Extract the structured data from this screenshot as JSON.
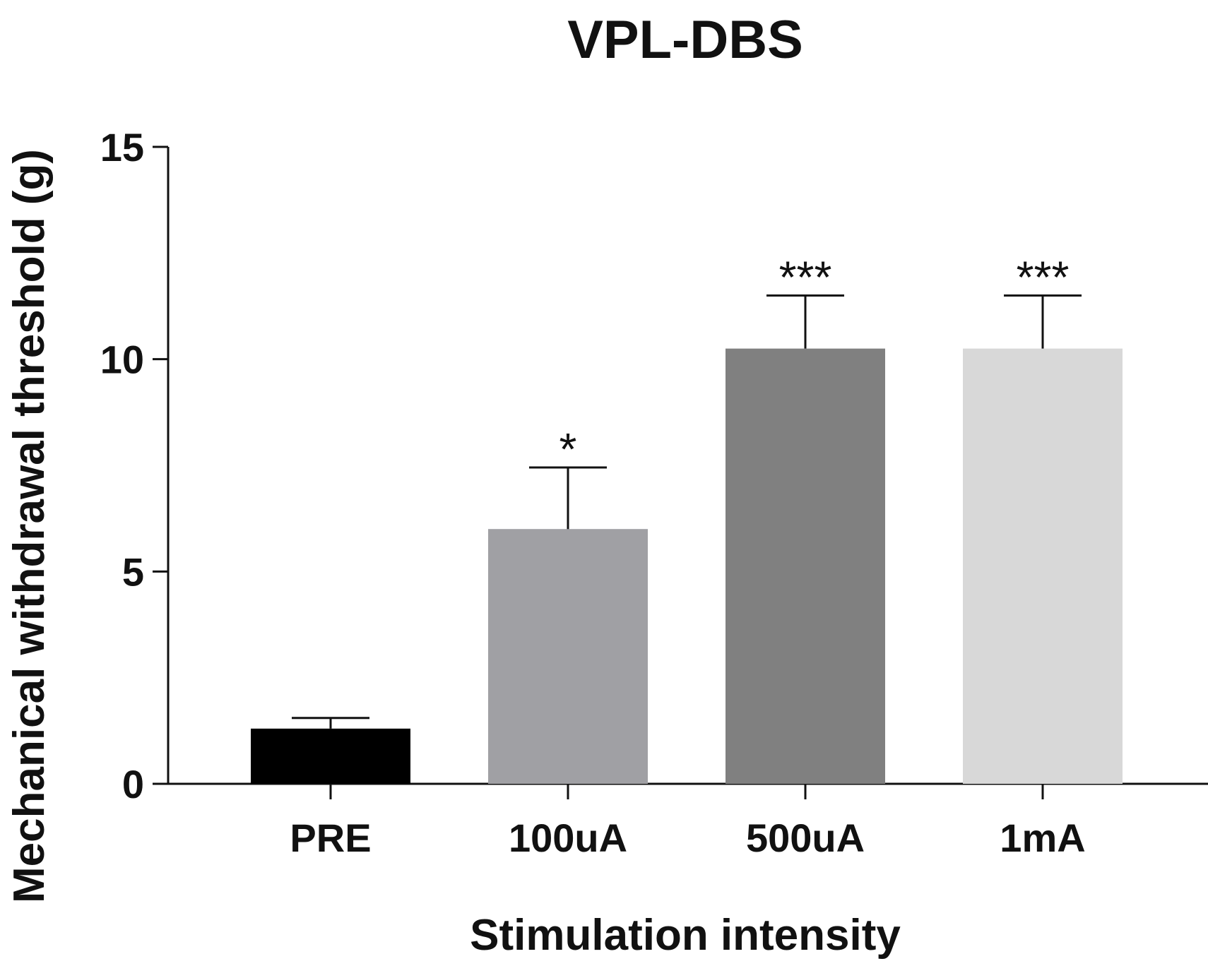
{
  "chart_data": {
    "type": "bar",
    "title": "VPL-DBS",
    "xlabel": "Stimulation intensity",
    "ylabel": "Mechanical withdrawal threshold (g)",
    "categories": [
      "PRE",
      "100uA",
      "500uA",
      "1mA"
    ],
    "values": [
      1.3,
      6.0,
      10.25,
      10.25
    ],
    "error_upper": [
      0.25,
      1.45,
      1.25,
      1.25
    ],
    "significance": [
      "",
      "*",
      "***",
      "***"
    ],
    "bar_colors": [
      "#000000",
      "#a0a0a4",
      "#808080",
      "#d8d8d8"
    ],
    "ylim": [
      0,
      15
    ],
    "yticks": [
      0,
      5,
      10,
      15
    ],
    "grid": false,
    "legend": "none"
  }
}
